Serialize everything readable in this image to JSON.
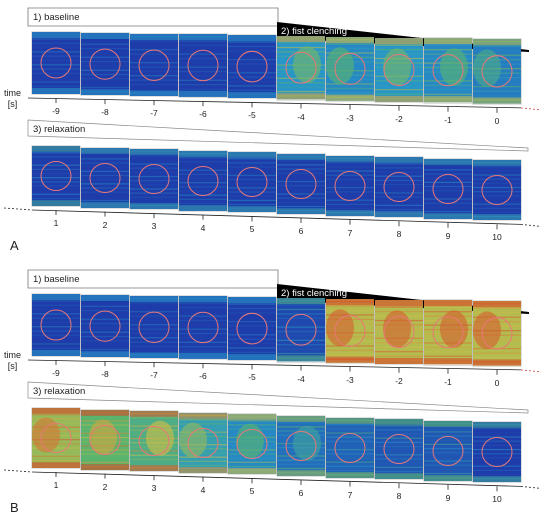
{
  "panels": [
    {
      "id": "A",
      "label": "A",
      "phases": {
        "baseline": "1) baseline",
        "clenching": "2) fist clenching",
        "relaxation": "3) relaxation"
      },
      "time_axis_label": "time\n[s]",
      "row1_ticks": [
        "-9",
        "-8",
        "-7",
        "-6",
        "-5",
        "-4",
        "-3",
        "-2",
        "-1",
        "0"
      ],
      "row2_ticks": [
        "1",
        "2",
        "3",
        "4",
        "5",
        "6",
        "7",
        "8",
        "9",
        "10"
      ],
      "row1_activation": [
        0.05,
        0.05,
        0.05,
        0.05,
        0.05,
        0.5,
        0.45,
        0.5,
        0.45,
        0.4
      ],
      "row2_activation": [
        0.15,
        0.1,
        0.1,
        0.1,
        0.1,
        0.1,
        0.1,
        0.1,
        0.1,
        0.1
      ]
    },
    {
      "id": "B",
      "label": "B",
      "phases": {
        "baseline": "1) baseline",
        "clenching": "2) fist clenching",
        "relaxation": "3) relaxation"
      },
      "time_axis_label": "time\n[s]",
      "row1_ticks": [
        "-9",
        "-8",
        "-7",
        "-6",
        "-5",
        "-4",
        "-3",
        "-2",
        "-1",
        "0"
      ],
      "row2_ticks": [
        "1",
        "2",
        "3",
        "4",
        "5",
        "6",
        "7",
        "8",
        "9",
        "10"
      ],
      "row1_activation": [
        0.05,
        0.05,
        0.05,
        0.05,
        0.05,
        0.2,
        0.85,
        0.85,
        0.85,
        0.85
      ],
      "row2_activation": [
        0.8,
        0.7,
        0.65,
        0.55,
        0.45,
        0.35,
        0.3,
        0.25,
        0.25,
        0.15
      ]
    }
  ]
}
